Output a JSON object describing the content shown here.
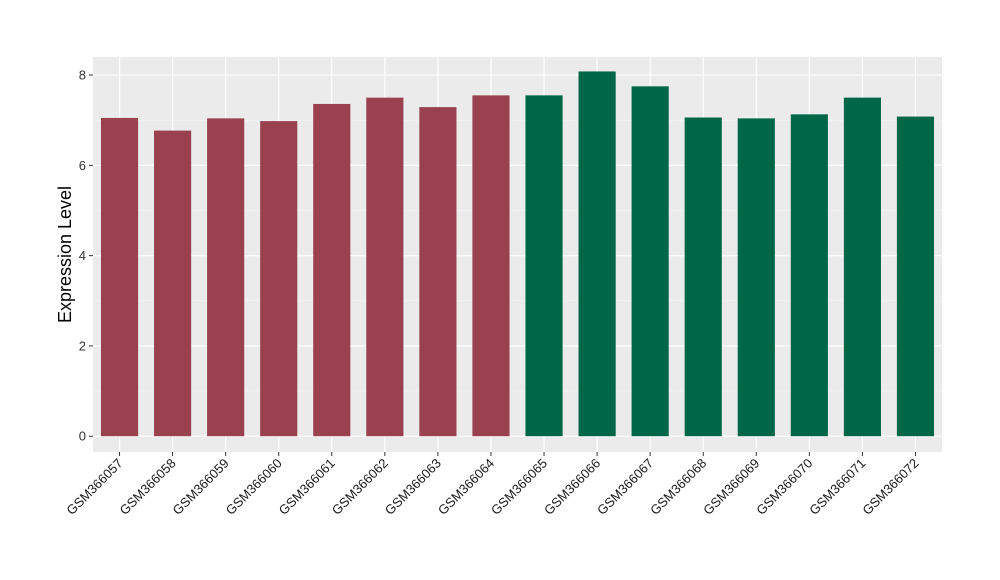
{
  "chart_data": {
    "type": "bar",
    "title": "",
    "xlabel": "",
    "ylabel": "Expression Level",
    "ylim": [
      -0.35,
      8.4
    ],
    "yticks": [
      0,
      2,
      4,
      6,
      8
    ],
    "grid": true,
    "background": "#EBEBEB",
    "categories": [
      "GSM366057",
      "GSM366058",
      "GSM366059",
      "GSM366060",
      "GSM366061",
      "GSM366062",
      "GSM366063",
      "GSM366064",
      "GSM366065",
      "GSM366066",
      "GSM366067",
      "GSM366068",
      "GSM366069",
      "GSM366070",
      "GSM366071",
      "GSM366072"
    ],
    "values": [
      7.05,
      6.77,
      7.04,
      6.98,
      7.36,
      7.5,
      7.29,
      7.55,
      7.55,
      8.08,
      7.75,
      7.06,
      7.04,
      7.13,
      7.5,
      7.08
    ],
    "bar_colors": [
      "#9A4150",
      "#9A4150",
      "#9A4150",
      "#9A4150",
      "#9A4150",
      "#9A4150",
      "#9A4150",
      "#9A4150",
      "#006746",
      "#006746",
      "#006746",
      "#006746",
      "#006746",
      "#006746",
      "#006746",
      "#006746"
    ]
  }
}
